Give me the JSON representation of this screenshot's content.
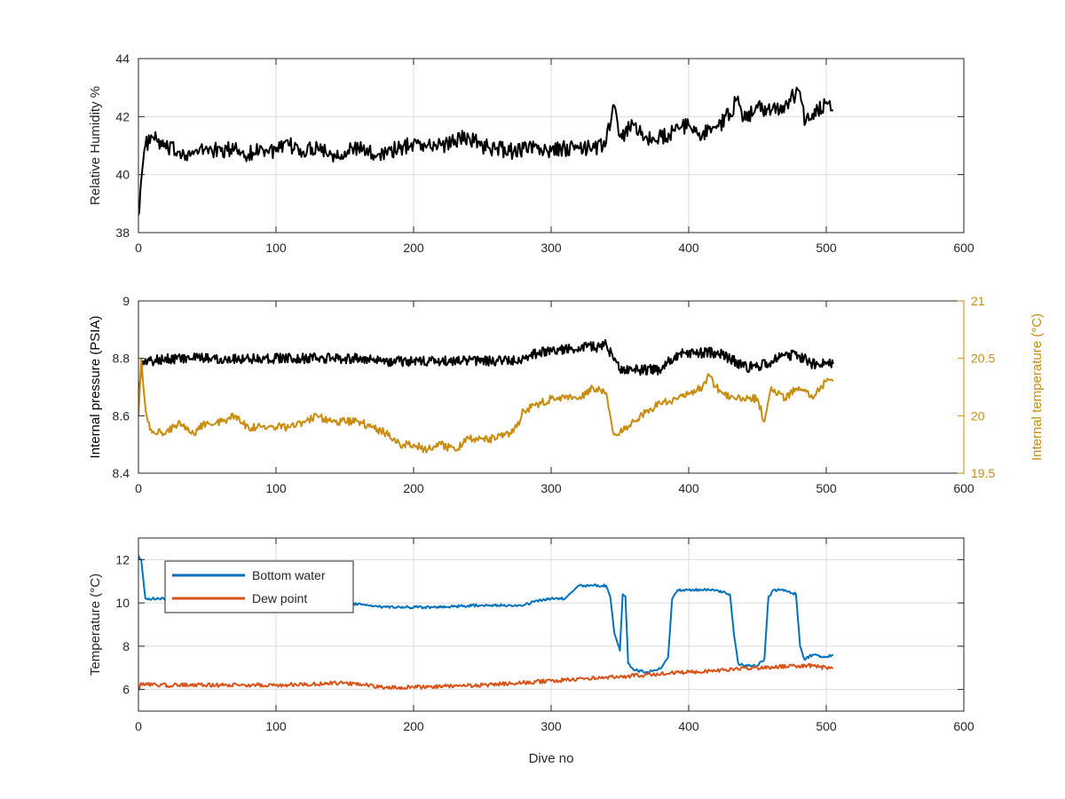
{
  "chart_data": [
    {
      "type": "line",
      "xlabel": "",
      "ylabel": "Relative Humidity %",
      "xlim": [
        0,
        600
      ],
      "ylim": [
        38,
        44
      ],
      "xticks": [
        0,
        100,
        200,
        300,
        400,
        500,
        600
      ],
      "yticks": [
        38,
        40,
        42,
        44
      ],
      "grid": true,
      "series": [
        {
          "color": "#000000",
          "x": [
            0,
            2,
            5,
            10,
            20,
            30,
            40,
            50,
            60,
            70,
            80,
            90,
            100,
            110,
            120,
            130,
            140,
            150,
            160,
            170,
            180,
            190,
            200,
            210,
            220,
            230,
            240,
            250,
            260,
            270,
            280,
            290,
            300,
            310,
            320,
            330,
            340,
            345,
            350,
            360,
            370,
            380,
            390,
            400,
            410,
            420,
            430,
            435,
            440,
            450,
            460,
            470,
            480,
            485,
            490,
            500,
            505
          ],
          "y": [
            38.6,
            39.8,
            41.0,
            41.3,
            40.9,
            40.8,
            40.7,
            40.9,
            40.8,
            40.9,
            40.7,
            40.9,
            40.8,
            41.0,
            40.8,
            41.0,
            40.7,
            40.8,
            40.9,
            40.7,
            40.8,
            40.9,
            41.1,
            41.0,
            41.0,
            41.2,
            41.3,
            41.0,
            40.9,
            40.8,
            40.9,
            40.9,
            40.8,
            40.9,
            40.9,
            40.9,
            41.1,
            42.4,
            41.3,
            41.7,
            41.2,
            41.3,
            41.5,
            41.7,
            41.4,
            41.6,
            42.1,
            42.6,
            41.9,
            42.3,
            42.2,
            42.4,
            42.9,
            41.8,
            42.1,
            42.5,
            42.2
          ]
        }
      ]
    },
    {
      "type": "line",
      "xlabel": "",
      "ylabel": "Internal pressure (PSIA)",
      "ylabel_right": "Internal temperature (°C)",
      "xlim": [
        0,
        600
      ],
      "ylim": [
        8.4,
        9.0
      ],
      "ylim_right": [
        19.5,
        21.0
      ],
      "xticks": [
        0,
        100,
        200,
        300,
        400,
        500,
        600
      ],
      "yticks": [
        8.4,
        8.6,
        8.8,
        9.0
      ],
      "yticks_labels": [
        "8.4",
        "8.6",
        "8.8",
        "9"
      ],
      "yticks_right": [
        19.5,
        20.0,
        20.5,
        21.0
      ],
      "yticks_right_labels": [
        "19.5",
        "20",
        "20.5",
        "21"
      ],
      "grid": false,
      "right_axis_color": "#c88d0f",
      "series": [
        {
          "axis": "left",
          "color": "#000000",
          "x": [
            0,
            3,
            10,
            20,
            40,
            60,
            80,
            100,
            120,
            140,
            160,
            180,
            200,
            220,
            240,
            260,
            280,
            290,
            300,
            310,
            320,
            330,
            335,
            340,
            345,
            350,
            360,
            380,
            390,
            400,
            410,
            420,
            430,
            440,
            450,
            460,
            470,
            480,
            490,
            500,
            505
          ],
          "y": [
            8.68,
            8.79,
            8.79,
            8.8,
            8.8,
            8.8,
            8.8,
            8.8,
            8.8,
            8.8,
            8.8,
            8.79,
            8.79,
            8.79,
            8.79,
            8.79,
            8.8,
            8.82,
            8.83,
            8.83,
            8.84,
            8.84,
            8.84,
            8.85,
            8.8,
            8.76,
            8.76,
            8.76,
            8.81,
            8.82,
            8.82,
            8.82,
            8.8,
            8.77,
            8.77,
            8.79,
            8.81,
            8.81,
            8.78,
            8.78,
            8.78
          ]
        },
        {
          "axis": "right",
          "color": "#c88d0f",
          "x": [
            0,
            2,
            4,
            6,
            10,
            20,
            30,
            40,
            50,
            60,
            70,
            80,
            90,
            100,
            110,
            120,
            130,
            140,
            150,
            160,
            170,
            180,
            190,
            200,
            210,
            220,
            230,
            240,
            250,
            260,
            270,
            275,
            280,
            290,
            300,
            310,
            320,
            330,
            340,
            345,
            350,
            360,
            370,
            380,
            390,
            400,
            410,
            415,
            420,
            430,
            440,
            450,
            455,
            460,
            470,
            480,
            490,
            500,
            505
          ],
          "y": [
            20.0,
            20.5,
            20.2,
            20.0,
            19.85,
            19.85,
            19.95,
            19.85,
            19.95,
            19.95,
            20.0,
            19.9,
            19.9,
            19.9,
            19.9,
            19.95,
            20.0,
            19.95,
            19.95,
            19.95,
            19.9,
            19.85,
            19.75,
            19.75,
            19.7,
            19.75,
            19.7,
            19.8,
            19.8,
            19.8,
            19.85,
            19.9,
            20.05,
            20.1,
            20.15,
            20.15,
            20.15,
            20.25,
            20.2,
            19.85,
            19.85,
            19.95,
            20.05,
            20.1,
            20.15,
            20.2,
            20.25,
            20.35,
            20.25,
            20.15,
            20.15,
            20.15,
            19.95,
            20.25,
            20.15,
            20.25,
            20.15,
            20.3,
            20.3
          ]
        }
      ]
    },
    {
      "type": "line",
      "xlabel": "Dive no",
      "ylabel": "Temperature (°C)",
      "xlim": [
        0,
        600
      ],
      "ylim": [
        5,
        13
      ],
      "xticks": [
        0,
        100,
        200,
        300,
        400,
        500,
        600
      ],
      "yticks": [
        6,
        8,
        10,
        12
      ],
      "grid": true,
      "legend": "top-left",
      "series": [
        {
          "name": "Bottom water",
          "color": "#0072bd",
          "x": [
            0,
            2,
            5,
            10,
            20,
            50,
            100,
            150,
            180,
            200,
            220,
            250,
            270,
            280,
            290,
            300,
            310,
            320,
            330,
            340,
            343,
            346,
            350,
            352,
            354,
            356,
            360,
            370,
            380,
            385,
            388,
            392,
            396,
            400,
            410,
            420,
            430,
            433,
            436,
            440,
            450,
            455,
            458,
            462,
            466,
            470,
            478,
            481,
            484,
            490,
            500,
            505
          ],
          "y": [
            12.2,
            12.0,
            10.2,
            10.2,
            10.2,
            10.2,
            10.1,
            10.0,
            9.8,
            9.8,
            9.8,
            9.9,
            9.9,
            9.9,
            10.1,
            10.2,
            10.2,
            10.8,
            10.8,
            10.8,
            10.3,
            8.6,
            7.8,
            10.4,
            10.3,
            7.2,
            6.9,
            6.8,
            7.0,
            7.5,
            10.2,
            10.6,
            10.6,
            10.6,
            10.6,
            10.6,
            10.4,
            8.5,
            7.2,
            7.1,
            7.1,
            7.4,
            10.3,
            10.6,
            10.6,
            10.6,
            10.4,
            8.0,
            7.4,
            7.6,
            7.5,
            7.6
          ]
        },
        {
          "name": "Dew point",
          "color": "#d95319",
          "x": [
            0,
            2,
            10,
            50,
            100,
            150,
            180,
            200,
            250,
            300,
            350,
            400,
            450,
            480,
            490,
            500,
            505
          ],
          "y": [
            6.0,
            6.3,
            6.2,
            6.2,
            6.2,
            6.3,
            6.1,
            6.1,
            6.2,
            6.4,
            6.6,
            6.8,
            7.0,
            7.1,
            7.1,
            7.0,
            7.0
          ]
        }
      ]
    }
  ]
}
